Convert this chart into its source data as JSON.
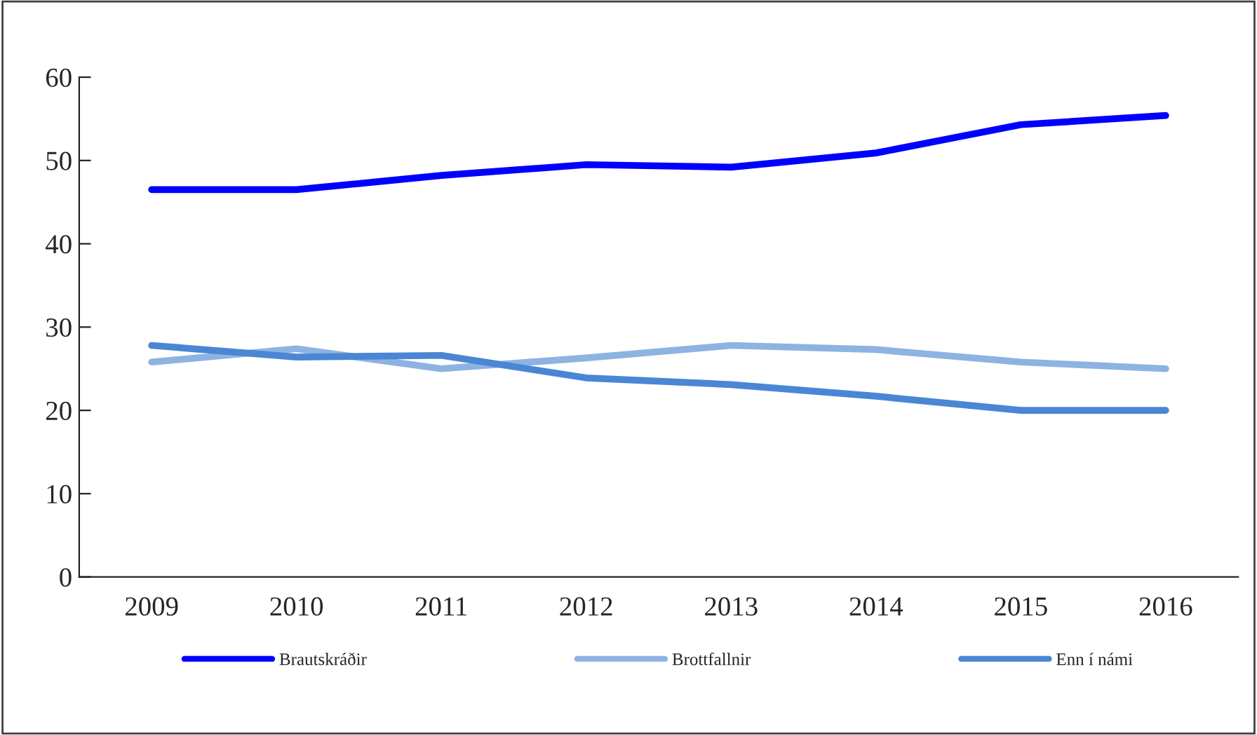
{
  "chart_data": {
    "type": "line",
    "categories": [
      "2009",
      "2010",
      "2011",
      "2012",
      "2013",
      "2014",
      "2015",
      "2016"
    ],
    "series": [
      {
        "name": "Brautskráðir",
        "color": "#0000ff",
        "values": [
          46.5,
          46.5,
          48.2,
          49.5,
          49.2,
          50.9,
          54.3,
          55.4
        ]
      },
      {
        "name": "Brottfallnir",
        "color": "#8db3e2",
        "values": [
          25.8,
          27.4,
          25.0,
          26.3,
          27.8,
          27.3,
          25.8,
          25.0
        ]
      },
      {
        "name": "Enn í námi",
        "color": "#4a86d4",
        "values": [
          27.8,
          26.4,
          26.6,
          23.9,
          23.1,
          21.7,
          20.0,
          20.0
        ]
      }
    ],
    "ylim": [
      0,
      60
    ],
    "yticks": [
      0,
      10,
      20,
      30,
      40,
      50,
      60
    ],
    "grid": false,
    "legend": "bottom",
    "marker": "none",
    "line_style": "solid"
  }
}
